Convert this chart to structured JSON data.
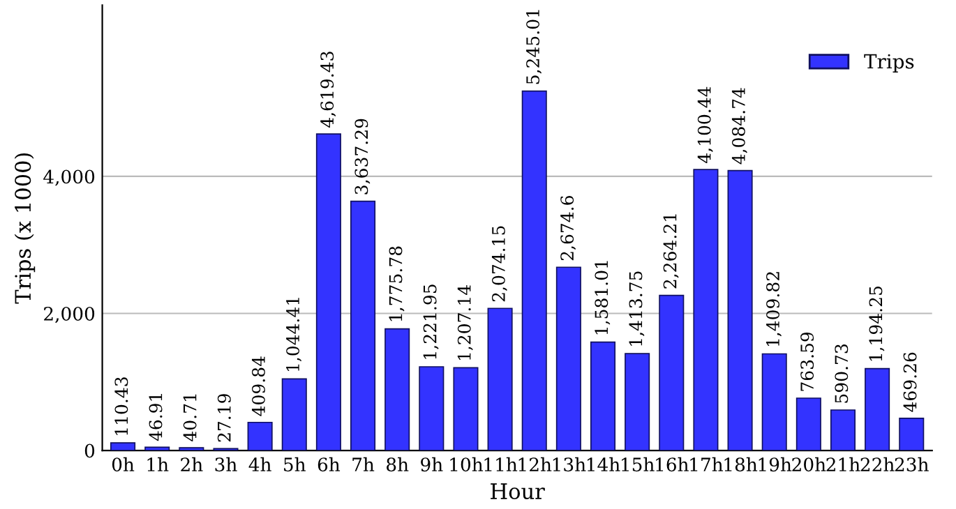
{
  "chart_data": {
    "type": "bar",
    "xlabel": "Hour",
    "ylabel": "Trips (x 1000)",
    "categories": [
      "0h",
      "1h",
      "2h",
      "3h",
      "4h",
      "5h",
      "6h",
      "7h",
      "8h",
      "9h",
      "10h",
      "11h",
      "12h",
      "13h",
      "14h",
      "15h",
      "16h",
      "17h",
      "18h",
      "19h",
      "20h",
      "21h",
      "22h",
      "23h"
    ],
    "series": [
      {
        "name": "Trips",
        "color": "#3333ff",
        "values": [
          110.43,
          46.91,
          40.71,
          27.19,
          409.84,
          1044.41,
          4619.43,
          3637.29,
          1775.78,
          1221.95,
          1207.14,
          2074.15,
          5245.01,
          2674.6,
          1581.01,
          1413.75,
          2264.21,
          4100.44,
          4084.74,
          1409.82,
          763.59,
          590.73,
          1194.25,
          469.26
        ],
        "value_labels": [
          "110.43",
          "46.91",
          "40.71",
          "27.19",
          "409.84",
          "1,044.41",
          "4,619.43",
          "3,637.29",
          "1,775.78",
          "1,221.95",
          "1,207.14",
          "2,074.15",
          "5,245.01",
          "2,674.6",
          "1,581.01",
          "1,413.75",
          "2,264.21",
          "4,100.44",
          "4,084.74",
          "1,409.82",
          "763.59",
          "590.73",
          "1,194.25",
          "469.26"
        ]
      }
    ],
    "ylim": [
      0,
      6500
    ],
    "yticks": [
      0,
      {
        "value": 2000,
        "label": "2,000"
      },
      {
        "value": 4000,
        "label": "4,000"
      }
    ],
    "grid": "y",
    "legend": "top right"
  }
}
